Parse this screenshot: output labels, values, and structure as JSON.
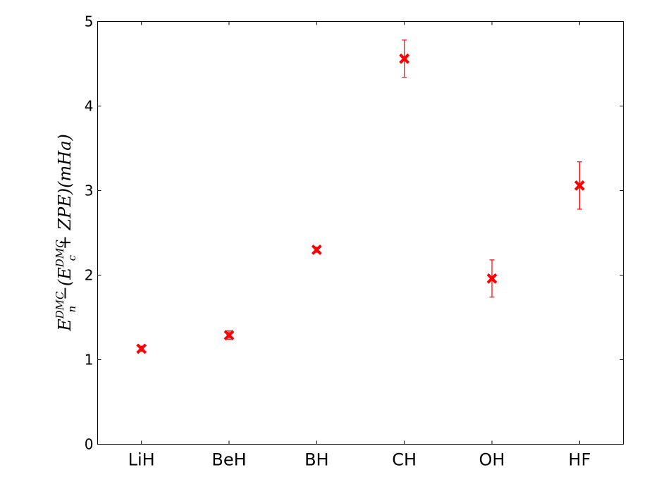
{
  "chart_data": {
    "type": "scatter",
    "categories": [
      "LiH",
      "BeH",
      "BH",
      "CH",
      "OH",
      "HF"
    ],
    "series": [
      {
        "values": [
          1.13,
          1.29,
          2.3,
          4.56,
          1.96,
          3.06
        ],
        "errors": [
          0.03,
          0.05,
          0.03,
          0.22,
          0.22,
          0.28
        ],
        "marker": "x",
        "color": "#ff0000"
      }
    ],
    "ylim": [
      0,
      5
    ],
    "yticks": [
      "0",
      "1",
      "2",
      "3",
      "4",
      "5"
    ],
    "ylabel": {
      "parts": [
        {
          "t": "E"
        },
        {
          "t": "DMC",
          "sup": true
        },
        {
          "t": "n",
          "sub": true
        },
        {
          "t": " −(E"
        },
        {
          "t": "DMC",
          "sup": true
        },
        {
          "t": "c",
          "sub": true
        },
        {
          "t": " + ZPE)(mHa)"
        }
      ]
    },
    "xlabel": "",
    "title": "",
    "grid": false
  }
}
